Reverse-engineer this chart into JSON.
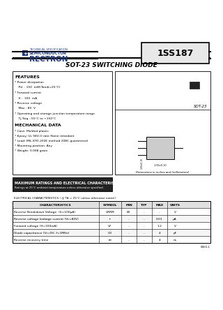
{
  "bg_color": "#ffffff",
  "title_part": "1SS187",
  "title_main": "SOT-23 SWITCHING DIODE",
  "rectron_text": "RECTRON",
  "semi_text": "SEMICONDUCTOR",
  "spec_text": "TECHNICAL SPECIFICATION",
  "features_title": "FEATURES",
  "features": [
    "* Power dissipation",
    "    Pd :  150  mW(Tamb=25°C)",
    "* Forward current",
    "    If :  100  mA",
    "* Reverse voltage",
    "    Max : 80  V",
    "* Operating and storage junction temperature range",
    "    Tj,Tstg :-55°C to +150°C"
  ],
  "mech_title": "MECHANICAL DATA",
  "mech": [
    "* Case: Molded plastic",
    "* Epoxy: UL 94V-O rate flame retardant",
    "* Lead: MIL-STD-202E method 208C guaranteed",
    "* Mounting position: Any",
    "* Weight: 0.008 gram"
  ],
  "maxrating_title": "MAXIMUM RATINGS AND ELECTRICAL CHARACTERISTICS",
  "maxrating_sub": "Ratings at 25°C ambient temperature unless otherwise specified.",
  "elec_note": "ELECTRICAL CHARACTERISTICS ( @ TA = 25°C unless otherwise noted )",
  "table_headers": [
    "CHARACTERISTICS",
    "SYMBOL",
    "MIN",
    "TYP",
    "MAX",
    "UNITS"
  ],
  "table_rows": [
    [
      "Reverse Breakdown Voltage  (Ir=100μA)",
      "VRRM",
      "80",
      "-",
      "-",
      "V"
    ],
    [
      "Reverse voltage leakage current (Vr=80V)",
      "Ir",
      "-",
      "-",
      "0.01",
      "μA"
    ],
    [
      "Forward voltage (If=100mA)",
      "VF",
      "-",
      "-",
      "1.2",
      "V"
    ],
    [
      "Diode capacitance (Vr=0V, f=1MHz)",
      "CD",
      "-",
      "-",
      "4",
      "pF"
    ],
    [
      "Reverse recovery time",
      "trr",
      "-",
      "-",
      "4",
      "ns"
    ]
  ],
  "sot23_label": "SOT-23",
  "dim_note": "Dimensions in inches and (millimeters)",
  "doc_num": "0000-1",
  "blue": "#1a3a8a",
  "gray_box": "#e8e8e8",
  "light_gray": "#d8d8d8"
}
